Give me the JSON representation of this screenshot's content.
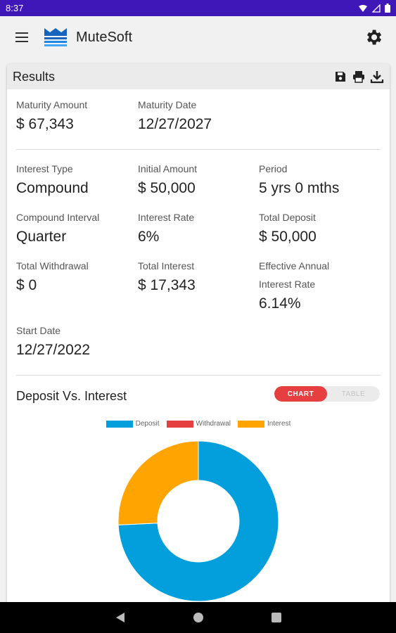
{
  "status_bar": {
    "time": "8:37"
  },
  "app_bar": {
    "title": "MuteSoft",
    "logo_color": "#1565c0"
  },
  "results": {
    "header": "Results",
    "maturity_amount": {
      "label": "Maturity Amount",
      "value": "$ 67,343"
    },
    "maturity_date": {
      "label": "Maturity Date",
      "value": "12/27/2027"
    },
    "interest_type": {
      "label": "Interest Type",
      "value": "Compound"
    },
    "initial_amount": {
      "label": "Initial Amount",
      "value": "$ 50,000"
    },
    "period": {
      "label": "Period",
      "value": "5 yrs 0 mths"
    },
    "compound_interval": {
      "label": "Compound Interval",
      "value": "Quarter"
    },
    "interest_rate": {
      "label": "Interest Rate",
      "value": "6%"
    },
    "total_deposit": {
      "label": "Total Deposit",
      "value": "$ 50,000"
    },
    "total_withdrawal": {
      "label": "Total Withdrawal",
      "value": "$ 0"
    },
    "total_interest": {
      "label": "Total Interest",
      "value": "$ 17,343"
    },
    "effective_rate": {
      "label_line1": "Effective Annual",
      "label_line2": "Interest Rate",
      "value": "6.14%"
    },
    "start_date": {
      "label": "Start Date",
      "value": "12/27/2022"
    }
  },
  "section": {
    "title": "Deposit Vs. Interest",
    "toggle": {
      "chart": "CHART",
      "table": "TABLE",
      "selected": "CHART"
    }
  },
  "chart_data": {
    "type": "pie",
    "style": "doughnut",
    "legend_position": "top",
    "series": [
      {
        "name": "Deposit",
        "value": 50000,
        "color": "#039fdc"
      },
      {
        "name": "Withdrawal",
        "value": 0,
        "color": "#e53f3f"
      },
      {
        "name": "Interest",
        "value": 17343,
        "color": "#ffa400"
      }
    ]
  },
  "accent_color": "#e53f3f",
  "status_bar_color": "#3f16b8"
}
